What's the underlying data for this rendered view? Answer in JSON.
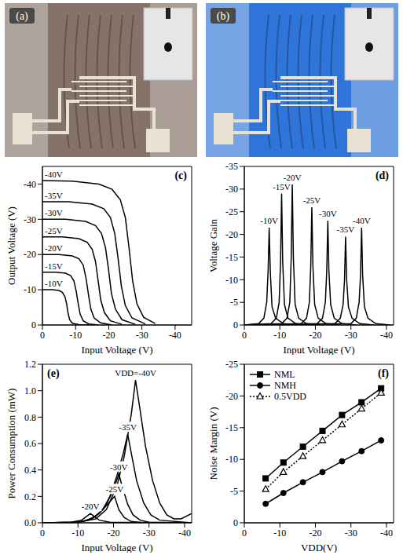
{
  "images": [
    {
      "label": "(a)",
      "color": "#857369"
    },
    {
      "label": "(b)",
      "color": "#2f74d8"
    }
  ],
  "chart_data": [
    {
      "type": "line",
      "title": "(c)",
      "x_label": "Input Voltage (V)",
      "y_label": "Output Voltage (V)",
      "xlim": [
        0,
        -45
      ],
      "ylim": [
        0,
        -45
      ],
      "xticks": [
        0,
        -10,
        -20,
        -30,
        -40
      ],
      "yticks": [
        0,
        -10,
        -20,
        -30,
        -40
      ],
      "grid": false,
      "series": [
        {
          "name": "-10V",
          "color": "#000000",
          "x": [
            0,
            -3,
            -5,
            -6,
            -6.8,
            -7.3,
            -7.7,
            -8.2,
            -9,
            -11,
            -14
          ],
          "values": [
            -10,
            -10,
            -9.8,
            -9.3,
            -8,
            -6,
            -3.5,
            -1.5,
            -0.5,
            -0.1,
            0
          ]
        },
        {
          "name": "-15V",
          "color": "#000000",
          "x": [
            0,
            -4,
            -7,
            -8.5,
            -9.5,
            -10.2,
            -10.8,
            -11.4,
            -12.3,
            -14,
            -17
          ],
          "values": [
            -15,
            -15,
            -14.7,
            -14,
            -12.5,
            -9.5,
            -6,
            -3,
            -1.2,
            -0.3,
            0
          ]
        },
        {
          "name": "-20V",
          "color": "#000000",
          "x": [
            0,
            -5,
            -9,
            -11,
            -12.3,
            -13.2,
            -13.9,
            -14.6,
            -15.6,
            -17.5,
            -21
          ],
          "values": [
            -20,
            -20,
            -19.6,
            -18.8,
            -17,
            -13,
            -8.5,
            -4.5,
            -2,
            -0.6,
            0
          ]
        },
        {
          "name": "-25V",
          "color": "#000000",
          "x": [
            0,
            -6,
            -11,
            -13.5,
            -15,
            -16,
            -16.8,
            -17.6,
            -18.7,
            -20.5,
            -24
          ],
          "values": [
            -25,
            -25,
            -24.5,
            -23.5,
            -21.5,
            -18,
            -12.5,
            -7,
            -3.5,
            -1.2,
            -0.2
          ]
        },
        {
          "name": "-30V",
          "color": "#000000",
          "x": [
            0,
            -7,
            -13,
            -16,
            -17.8,
            -19,
            -19.9,
            -20.8,
            -22,
            -24,
            -28
          ],
          "values": [
            -30,
            -30,
            -29.4,
            -28.2,
            -26,
            -22,
            -16,
            -9,
            -4.5,
            -1.5,
            -0.2
          ]
        },
        {
          "name": "-35V",
          "color": "#000000",
          "x": [
            0,
            -8,
            -15,
            -18.5,
            -20.5,
            -21.8,
            -22.8,
            -23.8,
            -25,
            -27,
            -31
          ],
          "values": [
            -35,
            -35,
            -34.3,
            -33,
            -30.5,
            -26,
            -19,
            -11,
            -5.5,
            -2,
            -0.3
          ]
        },
        {
          "name": "-40V",
          "color": "#000000",
          "x": [
            0,
            -9,
            -17,
            -21,
            -23.5,
            -25,
            -26.1,
            -27.2,
            -28.5,
            -30.5,
            -34
          ],
          "values": [
            -41,
            -40.8,
            -40,
            -38.5,
            -35.5,
            -30.5,
            -22,
            -12.5,
            -6,
            -2.2,
            -0.4
          ]
        }
      ]
    },
    {
      "type": "line",
      "title": "(d)",
      "x_label": "Input Voltage (V)",
      "y_label": "Voltage Gain",
      "xlim": [
        0,
        -42
      ],
      "ylim": [
        0,
        -35
      ],
      "xticks": [
        0,
        -10,
        -20,
        -30,
        -40
      ],
      "yticks": [
        0,
        -5,
        -10,
        -15,
        -20,
        -25,
        -30,
        -35
      ],
      "grid": false,
      "series": [
        {
          "name": "-10V",
          "color": "#000000",
          "x": [
            0,
            -4,
            -5.5,
            -6.3,
            -6.7,
            -7,
            -7.3,
            -7.8,
            -8.8,
            -11,
            -15
          ],
          "values": [
            0,
            -0.3,
            -1.5,
            -5,
            -12,
            -21.5,
            -12,
            -4,
            -1.5,
            -0.3,
            0
          ]
        },
        {
          "name": "-15V",
          "color": "#000000",
          "x": [
            0,
            -7.5,
            -9,
            -9.8,
            -10.2,
            -10.5,
            -10.8,
            -11.3,
            -12.3,
            -14.5,
            -18.5
          ],
          "values": [
            0,
            -0.3,
            -1.5,
            -5,
            -14,
            -29,
            -14,
            -4.5,
            -1.5,
            -0.3,
            0
          ]
        },
        {
          "name": "-20V",
          "color": "#000000",
          "x": [
            0,
            -10.5,
            -12,
            -12.8,
            -13.2,
            -13.5,
            -13.8,
            -14.3,
            -15.3,
            -17.5,
            -21.5
          ],
          "values": [
            0,
            -0.3,
            -1.5,
            -5,
            -15,
            -31,
            -15,
            -4.5,
            -1.5,
            -0.3,
            0
          ]
        },
        {
          "name": "-25V",
          "color": "#000000",
          "x": [
            0,
            -16,
            -17.5,
            -18.3,
            -18.7,
            -19,
            -19.3,
            -19.8,
            -20.8,
            -23,
            -27
          ],
          "values": [
            0,
            -0.3,
            -1.5,
            -5,
            -13,
            -26,
            -13,
            -4.5,
            -1.5,
            -0.3,
            0
          ]
        },
        {
          "name": "-30V",
          "color": "#000000",
          "x": [
            0,
            -20.5,
            -22,
            -22.8,
            -23.2,
            -23.5,
            -23.8,
            -24.3,
            -25.3,
            -27.5,
            -31.5
          ],
          "values": [
            0,
            -0.3,
            -1.5,
            -5,
            -12,
            -23,
            -12,
            -4.5,
            -1.5,
            -0.3,
            0
          ]
        },
        {
          "name": "-35V",
          "color": "#000000",
          "x": [
            0,
            -25.5,
            -27,
            -27.8,
            -28.2,
            -28.5,
            -28.8,
            -29.3,
            -30.3,
            -32.5,
            -36.5
          ],
          "values": [
            0,
            -0.3,
            -1.5,
            -4.5,
            -10,
            -19.5,
            -10,
            -4,
            -1.5,
            -0.3,
            0
          ]
        },
        {
          "name": "-40V",
          "color": "#000000",
          "x": [
            0,
            -30,
            -31.5,
            -32.3,
            -32.7,
            -33,
            -33.3,
            -33.8,
            -34.8,
            -37,
            -41
          ],
          "values": [
            0,
            -0.3,
            -1.5,
            -5,
            -11,
            -21.5,
            -11,
            -4,
            -1.5,
            -0.3,
            0
          ]
        }
      ]
    },
    {
      "type": "line",
      "title": "(e)",
      "x_label": "Input Voltage (V)",
      "y_label": "Power Consumption (mW)",
      "xlim": [
        0,
        -42
      ],
      "ylim": [
        0,
        1.2
      ],
      "xticks": [
        0,
        -10,
        -20,
        -30,
        -40
      ],
      "yticks": [
        {
          "value": 0,
          "label": "0.0"
        },
        0.2,
        0.4,
        0.6,
        0.8,
        {
          "value": 1,
          "label": "1.0"
        },
        1.2
      ],
      "grid": false,
      "series": [
        {
          "name": "-20V",
          "color": "#000000",
          "x": [
            0,
            -8,
            -11,
            -12.5,
            -13.5,
            -14.5,
            -16,
            -19,
            -42
          ],
          "values": [
            0,
            0.005,
            0.02,
            0.05,
            0.07,
            0.05,
            0.02,
            0.005,
            0
          ]
        },
        {
          "name": "-25V",
          "color": "#000000",
          "x": [
            0,
            -9,
            -12,
            -15,
            -17,
            -19,
            -20.3,
            -21.5,
            -23,
            -25,
            -28,
            -42
          ],
          "values": [
            0,
            0.003,
            0.015,
            0.05,
            0.1,
            0.16,
            0.2,
            0.1,
            0.04,
            0.01,
            0.002,
            0
          ]
        },
        {
          "name": "-30V",
          "color": "#000000",
          "x": [
            0,
            -10,
            -13,
            -16,
            -18,
            -20,
            -21.5,
            -22.5,
            -24,
            -25.5,
            -27.5,
            -30,
            -42
          ],
          "values": [
            0,
            0.005,
            0.02,
            0.07,
            0.14,
            0.25,
            0.37,
            0.27,
            0.14,
            0.06,
            0.02,
            0.005,
            0
          ]
        },
        {
          "name": "-35V",
          "color": "#000000",
          "x": [
            0,
            -10,
            -14,
            -17,
            -19,
            -21,
            -22.8,
            -24,
            -25.2,
            -26.5,
            -28.5,
            -30.5,
            -33,
            -42
          ],
          "values": [
            0,
            0.005,
            0.03,
            0.1,
            0.2,
            0.36,
            0.53,
            0.67,
            0.5,
            0.32,
            0.15,
            0.06,
            0.02,
            0
          ]
        },
        {
          "name": "VDD=-40V",
          "color": "#000000",
          "x": [
            0,
            -10,
            -15,
            -18,
            -21,
            -23,
            -25,
            -26.2,
            -27.5,
            -29,
            -31,
            -33,
            -35,
            -37,
            -39,
            -42
          ],
          "values": [
            0,
            0.005,
            0.03,
            0.1,
            0.28,
            0.5,
            0.82,
            1.08,
            0.85,
            0.58,
            0.32,
            0.15,
            0.06,
            0.03,
            0.03,
            0.07
          ]
        }
      ]
    },
    {
      "type": "line",
      "title": "(f)",
      "x_label": "VDD(V)",
      "y_label": "Noise Margin (V)",
      "xlim": [
        0,
        -42
      ],
      "ylim": [
        0,
        -25
      ],
      "xticks": [
        0,
        -10,
        -20,
        -30,
        -40
      ],
      "yticks": [
        0,
        -5,
        -10,
        -15,
        -20,
        -25
      ],
      "grid": false,
      "legend": "upper left",
      "series": [
        {
          "name": "NML",
          "color": "#000000",
          "marker": "square",
          "line_style": "solid",
          "x": [
            -6,
            -11,
            -16.5,
            -22,
            -27.5,
            -33,
            -38.5
          ],
          "values": [
            -7,
            -9.5,
            -12,
            -14.5,
            -17,
            -19,
            -21.2
          ]
        },
        {
          "name": "NMH",
          "color": "#000000",
          "marker": "circle",
          "line_style": "solid",
          "x": [
            -6,
            -11,
            -16.5,
            -22,
            -27.5,
            -33,
            -38.5
          ],
          "values": [
            -3,
            -4.7,
            -6.4,
            -8,
            -9.7,
            -11.3,
            -13
          ]
        },
        {
          "name": "0.5VDD",
          "color": "#000000",
          "marker": "triangle",
          "line_style": "dotted",
          "x": [
            -6,
            -11,
            -16.5,
            -22,
            -27.5,
            -33,
            -38.5
          ],
          "values": [
            -5.3,
            -8,
            -10.5,
            -13,
            -15.5,
            -18,
            -20.5
          ]
        }
      ]
    }
  ]
}
